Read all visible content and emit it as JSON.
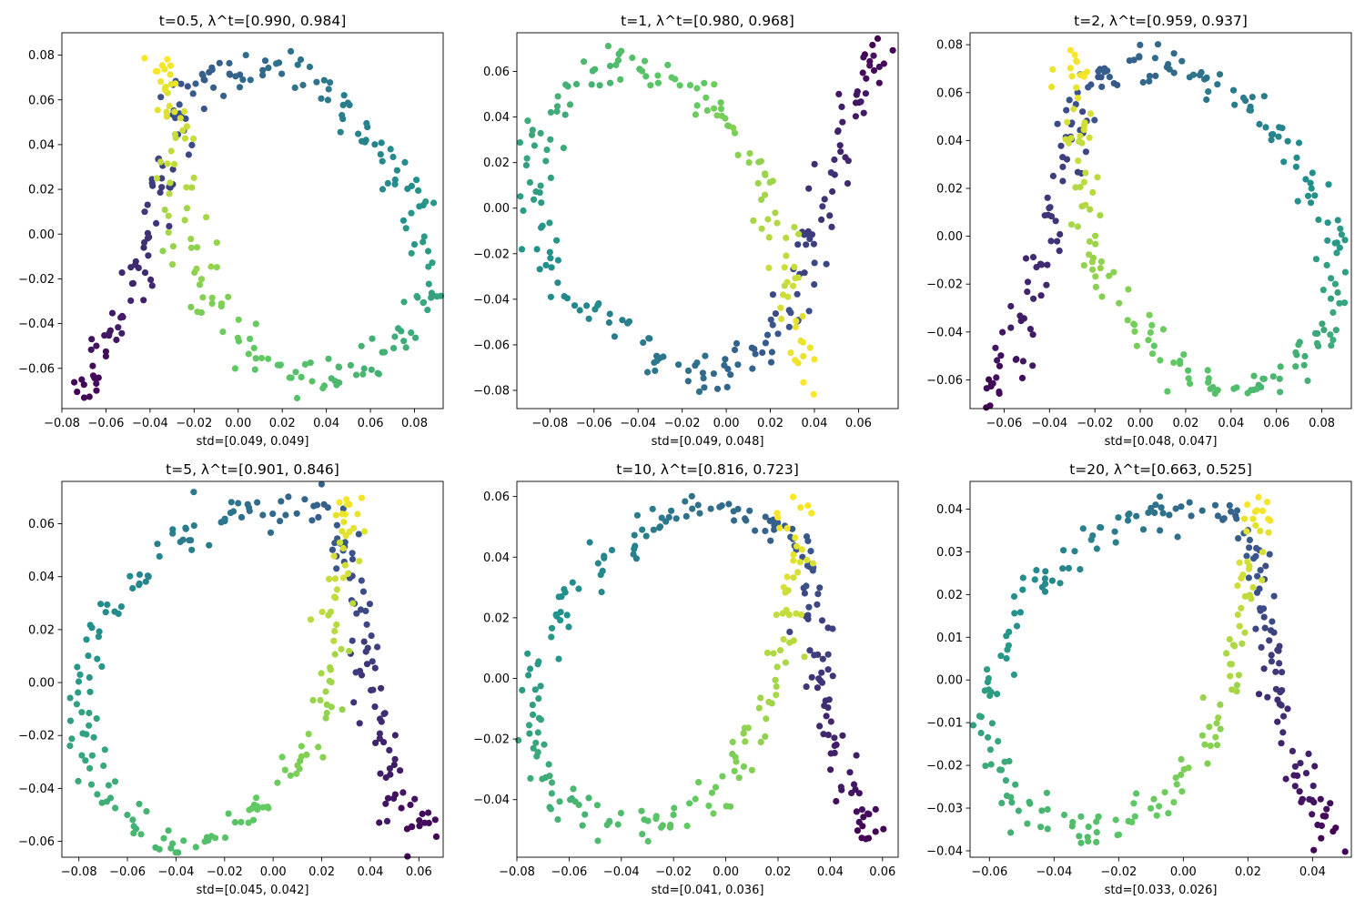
{
  "figure": {
    "colormap": "viridis",
    "colormap_stops": [
      "#440154",
      "#3b528b",
      "#21918c",
      "#5ec962",
      "#fde725"
    ]
  },
  "chart_data": [
    {
      "type": "scatter",
      "title": "t=0.5, λ^t=[0.990, 0.984]",
      "xlabel": "std=[0.049, 0.049]",
      "ylabel": "",
      "xlim": [
        -0.08,
        0.093
      ],
      "ylim": [
        -0.078,
        0.09
      ],
      "xticks": [
        -0.08,
        -0.06,
        -0.04,
        -0.02,
        0.0,
        0.02,
        0.04,
        0.06,
        0.08
      ],
      "yticks": [
        -0.06,
        -0.04,
        -0.02,
        0.0,
        0.02,
        0.04,
        0.06,
        0.08
      ],
      "curve": [
        [
          -0.073,
          -0.07
        ],
        [
          -0.068,
          -0.064
        ],
        [
          -0.062,
          -0.055
        ],
        [
          -0.056,
          -0.044
        ],
        [
          -0.05,
          -0.032
        ],
        [
          -0.045,
          -0.018
        ],
        [
          -0.041,
          -0.004
        ],
        [
          -0.038,
          0.01
        ],
        [
          -0.035,
          0.024
        ],
        [
          -0.032,
          0.038
        ],
        [
          -0.029,
          0.051
        ],
        [
          -0.025,
          0.061
        ],
        [
          -0.018,
          0.068
        ],
        [
          -0.008,
          0.072
        ],
        [
          0.004,
          0.074
        ],
        [
          0.016,
          0.074
        ],
        [
          0.028,
          0.071
        ],
        [
          0.04,
          0.064
        ],
        [
          0.052,
          0.054
        ],
        [
          0.062,
          0.043
        ],
        [
          0.071,
          0.031
        ],
        [
          0.079,
          0.018
        ],
        [
          0.085,
          0.004
        ],
        [
          0.087,
          -0.01
        ],
        [
          0.086,
          -0.024
        ],
        [
          0.083,
          -0.037
        ],
        [
          0.076,
          -0.048
        ],
        [
          0.066,
          -0.057
        ],
        [
          0.054,
          -0.063
        ],
        [
          0.04,
          -0.066
        ],
        [
          0.026,
          -0.064
        ],
        [
          0.013,
          -0.058
        ],
        [
          0.002,
          -0.048
        ],
        [
          -0.008,
          -0.036
        ],
        [
          -0.016,
          -0.022
        ],
        [
          -0.021,
          -0.008
        ],
        [
          -0.025,
          0.006
        ],
        [
          -0.027,
          0.02
        ],
        [
          -0.028,
          0.034
        ],
        [
          -0.029,
          0.048
        ],
        [
          -0.031,
          0.062
        ],
        [
          -0.033,
          0.072
        ],
        [
          -0.033,
          0.081
        ]
      ],
      "spread": 0.0045
    },
    {
      "type": "scatter",
      "title": "t=1, λ^t=[0.980, 0.968]",
      "xlabel": "std=[0.049, 0.048]",
      "ylabel": "",
      "xlim": [
        -0.095,
        0.078
      ],
      "ylim": [
        -0.088,
        0.077
      ],
      "xticks": [
        -0.08,
        -0.06,
        -0.04,
        -0.02,
        0.0,
        0.02,
        0.04,
        0.06
      ],
      "yticks": [
        -0.08,
        -0.06,
        -0.04,
        -0.02,
        0.0,
        0.02,
        0.04,
        0.06
      ],
      "curve": [
        [
          0.07,
          0.071
        ],
        [
          0.066,
          0.064
        ],
        [
          0.061,
          0.052
        ],
        [
          0.056,
          0.04
        ],
        [
          0.051,
          0.026
        ],
        [
          0.046,
          0.012
        ],
        [
          0.041,
          -0.002
        ],
        [
          0.037,
          -0.016
        ],
        [
          0.034,
          -0.03
        ],
        [
          0.03,
          -0.044
        ],
        [
          0.024,
          -0.056
        ],
        [
          0.016,
          -0.066
        ],
        [
          0.005,
          -0.072
        ],
        [
          -0.008,
          -0.073
        ],
        [
          -0.022,
          -0.069
        ],
        [
          -0.036,
          -0.062
        ],
        [
          -0.05,
          -0.054
        ],
        [
          -0.064,
          -0.044
        ],
        [
          -0.077,
          -0.032
        ],
        [
          -0.086,
          -0.018
        ],
        [
          -0.089,
          -0.002
        ],
        [
          -0.088,
          0.014
        ],
        [
          -0.085,
          0.03
        ],
        [
          -0.079,
          0.044
        ],
        [
          -0.07,
          0.055
        ],
        [
          -0.058,
          0.062
        ],
        [
          -0.044,
          0.063
        ],
        [
          -0.03,
          0.06
        ],
        [
          -0.016,
          0.053
        ],
        [
          -0.004,
          0.043
        ],
        [
          0.006,
          0.031
        ],
        [
          0.014,
          0.017
        ],
        [
          0.021,
          0.002
        ],
        [
          0.026,
          -0.014
        ],
        [
          0.029,
          -0.03
        ],
        [
          0.031,
          -0.046
        ],
        [
          0.032,
          -0.062
        ],
        [
          0.033,
          -0.081
        ]
      ],
      "spread": 0.0045
    },
    {
      "type": "scatter",
      "title": "t=2, λ^t=[0.959, 0.937]",
      "xlabel": "std=[0.048, 0.047]",
      "ylabel": "",
      "xlim": [
        -0.075,
        0.093
      ],
      "ylim": [
        -0.072,
        0.085
      ],
      "xticks": [
        -0.06,
        -0.04,
        -0.02,
        0.0,
        0.02,
        0.04,
        0.06,
        0.08
      ],
      "yticks": [
        -0.06,
        -0.04,
        -0.02,
        0.0,
        0.02,
        0.04,
        0.06,
        0.08
      ],
      "curve": [
        [
          -0.068,
          -0.067
        ],
        [
          -0.063,
          -0.061
        ],
        [
          -0.058,
          -0.052
        ],
        [
          -0.053,
          -0.041
        ],
        [
          -0.048,
          -0.029
        ],
        [
          -0.044,
          -0.015
        ],
        [
          -0.04,
          -0.001
        ],
        [
          -0.037,
          0.013
        ],
        [
          -0.034,
          0.027
        ],
        [
          -0.031,
          0.041
        ],
        [
          -0.028,
          0.053
        ],
        [
          -0.023,
          0.063
        ],
        [
          -0.015,
          0.069
        ],
        [
          -0.004,
          0.072
        ],
        [
          0.008,
          0.073
        ],
        [
          0.02,
          0.071
        ],
        [
          0.032,
          0.066
        ],
        [
          0.044,
          0.058
        ],
        [
          0.055,
          0.048
        ],
        [
          0.065,
          0.037
        ],
        [
          0.073,
          0.025
        ],
        [
          0.08,
          0.012
        ],
        [
          0.084,
          -0.002
        ],
        [
          0.086,
          -0.016
        ],
        [
          0.085,
          -0.029
        ],
        [
          0.081,
          -0.041
        ],
        [
          0.073,
          -0.051
        ],
        [
          0.062,
          -0.058
        ],
        [
          0.049,
          -0.063
        ],
        [
          0.035,
          -0.062
        ],
        [
          0.021,
          -0.058
        ],
        [
          0.009,
          -0.051
        ],
        [
          -0.002,
          -0.04
        ],
        [
          -0.01,
          -0.028
        ],
        [
          -0.017,
          -0.014
        ],
        [
          -0.022,
          0.0
        ],
        [
          -0.025,
          0.014
        ],
        [
          -0.027,
          0.028
        ],
        [
          -0.028,
          0.042
        ],
        [
          -0.029,
          0.056
        ],
        [
          -0.03,
          0.068
        ],
        [
          -0.031,
          0.077
        ]
      ],
      "spread": 0.0042
    },
    {
      "type": "scatter",
      "title": "t=5, λ^t=[0.901, 0.846]",
      "xlabel": "std=[0.045, 0.042]",
      "ylabel": "",
      "xlim": [
        -0.087,
        0.07
      ],
      "ylim": [
        -0.066,
        0.076
      ],
      "xticks": [
        -0.08,
        -0.06,
        -0.04,
        -0.02,
        0.0,
        0.02,
        0.04,
        0.06
      ],
      "yticks": [
        -0.06,
        -0.04,
        -0.02,
        0.0,
        0.02,
        0.04,
        0.06
      ],
      "curve": [
        [
          0.063,
          -0.059
        ],
        [
          0.059,
          -0.054
        ],
        [
          0.054,
          -0.047
        ],
        [
          0.05,
          -0.039
        ],
        [
          0.046,
          -0.029
        ],
        [
          0.043,
          -0.018
        ],
        [
          0.041,
          -0.006
        ],
        [
          0.039,
          0.006
        ],
        [
          0.037,
          0.018
        ],
        [
          0.035,
          0.03
        ],
        [
          0.033,
          0.041
        ],
        [
          0.03,
          0.051
        ],
        [
          0.024,
          0.059
        ],
        [
          0.014,
          0.064
        ],
        [
          0.002,
          0.066
        ],
        [
          -0.01,
          0.066
        ],
        [
          -0.022,
          0.063
        ],
        [
          -0.034,
          0.057
        ],
        [
          -0.046,
          0.049
        ],
        [
          -0.057,
          0.039
        ],
        [
          -0.067,
          0.027
        ],
        [
          -0.075,
          0.014
        ],
        [
          -0.079,
          0.0
        ],
        [
          -0.08,
          -0.014
        ],
        [
          -0.078,
          -0.027
        ],
        [
          -0.073,
          -0.039
        ],
        [
          -0.065,
          -0.049
        ],
        [
          -0.054,
          -0.056
        ],
        [
          -0.042,
          -0.06
        ],
        [
          -0.029,
          -0.059
        ],
        [
          -0.016,
          -0.055
        ],
        [
          -0.004,
          -0.048
        ],
        [
          0.006,
          -0.038
        ],
        [
          0.013,
          -0.027
        ],
        [
          0.019,
          -0.014
        ],
        [
          0.023,
          0.0
        ],
        [
          0.026,
          0.014
        ],
        [
          0.028,
          0.028
        ],
        [
          0.029,
          0.041
        ],
        [
          0.03,
          0.054
        ],
        [
          0.031,
          0.066
        ],
        [
          0.031,
          0.071
        ]
      ],
      "spread": 0.0036
    },
    {
      "type": "scatter",
      "title": "t=10, λ^t=[0.816, 0.723]",
      "xlabel": "std=[0.041, 0.036]",
      "ylabel": "",
      "xlim": [
        -0.08,
        0.066
      ],
      "ylim": [
        -0.059,
        0.065
      ],
      "xticks": [
        -0.08,
        -0.06,
        -0.04,
        -0.02,
        0.0,
        0.02,
        0.04,
        0.06
      ],
      "yticks": [
        -0.04,
        -0.02,
        0.0,
        0.02,
        0.04,
        0.06
      ],
      "curve": [
        [
          0.057,
          -0.052
        ],
        [
          0.053,
          -0.047
        ],
        [
          0.049,
          -0.04
        ],
        [
          0.045,
          -0.032
        ],
        [
          0.042,
          -0.023
        ],
        [
          0.039,
          -0.013
        ],
        [
          0.037,
          -0.003
        ],
        [
          0.035,
          0.007
        ],
        [
          0.033,
          0.017
        ],
        [
          0.031,
          0.027
        ],
        [
          0.029,
          0.036
        ],
        [
          0.026,
          0.044
        ],
        [
          0.02,
          0.05
        ],
        [
          0.011,
          0.054
        ],
        [
          0.0,
          0.056
        ],
        [
          -0.011,
          0.055
        ],
        [
          -0.022,
          0.052
        ],
        [
          -0.033,
          0.047
        ],
        [
          -0.044,
          0.04
        ],
        [
          -0.054,
          0.031
        ],
        [
          -0.063,
          0.021
        ],
        [
          -0.069,
          0.01
        ],
        [
          -0.073,
          -0.002
        ],
        [
          -0.074,
          -0.014
        ],
        [
          -0.072,
          -0.025
        ],
        [
          -0.067,
          -0.035
        ],
        [
          -0.059,
          -0.042
        ],
        [
          -0.049,
          -0.047
        ],
        [
          -0.038,
          -0.049
        ],
        [
          -0.026,
          -0.048
        ],
        [
          -0.014,
          -0.044
        ],
        [
          -0.004,
          -0.037
        ],
        [
          0.005,
          -0.028
        ],
        [
          0.011,
          -0.018
        ],
        [
          0.016,
          -0.007
        ],
        [
          0.02,
          0.005
        ],
        [
          0.023,
          0.017
        ],
        [
          0.025,
          0.029
        ],
        [
          0.026,
          0.04
        ],
        [
          0.027,
          0.05
        ],
        [
          0.028,
          0.058
        ]
      ],
      "spread": 0.0031
    },
    {
      "type": "scatter",
      "title": "t=20, λ^t=[0.663, 0.525]",
      "xlabel": "std=[0.033, 0.026]",
      "ylabel": "",
      "xlim": [
        -0.066,
        0.052
      ],
      "ylim": [
        -0.0415,
        0.0465
      ],
      "xticks": [
        -0.06,
        -0.04,
        -0.02,
        0.0,
        0.02,
        0.04
      ],
      "yticks": [
        -0.04,
        -0.03,
        -0.02,
        -0.01,
        0.0,
        0.01,
        0.02,
        0.03,
        0.04
      ],
      "curve": [
        [
          0.047,
          -0.038
        ],
        [
          0.044,
          -0.034
        ],
        [
          0.04,
          -0.029
        ],
        [
          0.037,
          -0.023
        ],
        [
          0.034,
          -0.017
        ],
        [
          0.032,
          -0.01
        ],
        [
          0.03,
          -0.003
        ],
        [
          0.029,
          0.004
        ],
        [
          0.027,
          0.011
        ],
        [
          0.026,
          0.018
        ],
        [
          0.024,
          0.025
        ],
        [
          0.022,
          0.031
        ],
        [
          0.018,
          0.036
        ],
        [
          0.011,
          0.039
        ],
        [
          0.002,
          0.04
        ],
        [
          -0.007,
          0.04
        ],
        [
          -0.016,
          0.038
        ],
        [
          -0.025,
          0.034
        ],
        [
          -0.034,
          0.029
        ],
        [
          -0.043,
          0.023
        ],
        [
          -0.051,
          0.016
        ],
        [
          -0.056,
          0.008
        ],
        [
          -0.06,
          -0.001
        ],
        [
          -0.061,
          -0.01
        ],
        [
          -0.059,
          -0.018
        ],
        [
          -0.055,
          -0.025
        ],
        [
          -0.048,
          -0.031
        ],
        [
          -0.04,
          -0.034
        ],
        [
          -0.031,
          -0.035
        ],
        [
          -0.021,
          -0.034
        ],
        [
          -0.012,
          -0.031
        ],
        [
          -0.003,
          -0.026
        ],
        [
          0.004,
          -0.019
        ],
        [
          0.009,
          -0.011
        ],
        [
          0.013,
          -0.003
        ],
        [
          0.016,
          0.006
        ],
        [
          0.018,
          0.015
        ],
        [
          0.02,
          0.024
        ],
        [
          0.021,
          0.032
        ],
        [
          0.022,
          0.038
        ],
        [
          0.023,
          0.043
        ]
      ],
      "spread": 0.0024
    }
  ]
}
